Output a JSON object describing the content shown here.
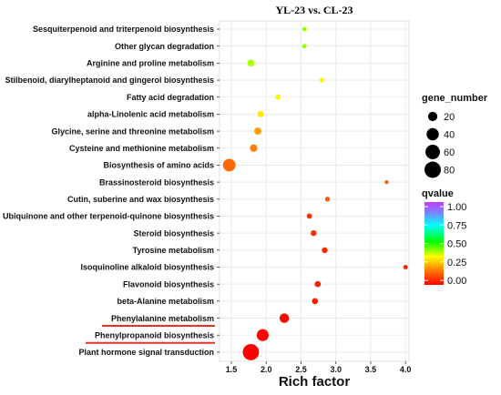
{
  "chart_data": {
    "type": "scatter",
    "title": "YL-23 vs. CL-23",
    "xlabel": "Rich factor",
    "ylabel": "",
    "xlim": [
      1.33,
      4.05
    ],
    "xticks": [
      "1.5",
      "2.0",
      "2.5",
      "3.0",
      "3.5",
      "4.0"
    ],
    "grid": true,
    "pathways": [
      {
        "name": "Sesquiterpenoid and triterpenoid biosynthesis",
        "rich_factor": 2.55,
        "gene_number": 2,
        "qvalue": 0.42,
        "underlined": false
      },
      {
        "name": "Other glycan degradation",
        "rich_factor": 2.55,
        "gene_number": 2,
        "qvalue": 0.42,
        "underlined": false
      },
      {
        "name": "Arginine and proline metabolism",
        "rich_factor": 1.78,
        "gene_number": 9,
        "qvalue": 0.4,
        "underlined": false
      },
      {
        "name": "Stilbenoid, diarylheptanoid and gingerol biosynthesis",
        "rich_factor": 2.8,
        "gene_number": 3,
        "qvalue": 0.35,
        "underlined": false
      },
      {
        "name": "Fatty acid degradation",
        "rich_factor": 2.17,
        "gene_number": 4,
        "qvalue": 0.33,
        "underlined": false
      },
      {
        "name": "alpha-Linolenic acid metabolism",
        "rich_factor": 1.92,
        "gene_number": 7,
        "qvalue": 0.31,
        "underlined": false
      },
      {
        "name": "Glycine, serine and threonine metabolism",
        "rich_factor": 1.88,
        "gene_number": 10,
        "qvalue": 0.22,
        "underlined": false
      },
      {
        "name": "Cysteine and methionine metabolism",
        "rich_factor": 1.82,
        "gene_number": 11,
        "qvalue": 0.18,
        "underlined": false
      },
      {
        "name": "Biosynthesis of amino acids",
        "rich_factor": 1.47,
        "gene_number": 43,
        "qvalue": 0.15,
        "underlined": false
      },
      {
        "name": "Brassinosteroid biosynthesis",
        "rich_factor": 3.73,
        "gene_number": 1,
        "qvalue": 0.12,
        "underlined": false
      },
      {
        "name": "Cutin, suberine and wax biosynthesis",
        "rich_factor": 2.88,
        "gene_number": 3,
        "qvalue": 0.13,
        "underlined": false
      },
      {
        "name": "Ubiquinone and other terpenoid-quinone biosynthesis",
        "rich_factor": 2.62,
        "gene_number": 4,
        "qvalue": 0.07,
        "underlined": false
      },
      {
        "name": "Steroid biosynthesis",
        "rich_factor": 2.68,
        "gene_number": 5,
        "qvalue": 0.06,
        "underlined": false
      },
      {
        "name": "Tyrosine metabolism",
        "rich_factor": 2.84,
        "gene_number": 5,
        "qvalue": 0.05,
        "underlined": false
      },
      {
        "name": "Isoquinoline alkaloid biosynthesis",
        "rich_factor": 4.0,
        "gene_number": 2,
        "qvalue": 0.04,
        "underlined": false
      },
      {
        "name": "Flavonoid biosynthesis",
        "rich_factor": 2.74,
        "gene_number": 6,
        "qvalue": 0.04,
        "underlined": false
      },
      {
        "name": "beta-Alanine metabolism",
        "rich_factor": 2.7,
        "gene_number": 6,
        "qvalue": 0.03,
        "underlined": false
      },
      {
        "name": "Phenylalanine metabolism",
        "rich_factor": 2.26,
        "gene_number": 21,
        "qvalue": 0.01,
        "underlined": true
      },
      {
        "name": "Phenylpropanoid biosynthesis",
        "rich_factor": 1.95,
        "gene_number": 38,
        "qvalue": 0.005,
        "underlined": true
      },
      {
        "name": "Plant hormone signal transduction",
        "rich_factor": 1.78,
        "gene_number": 79,
        "qvalue": 0.0,
        "underlined": false
      }
    ],
    "legend_size": {
      "title": "gene_number",
      "values": [
        20,
        40,
        60,
        80
      ]
    },
    "legend_color": {
      "title": "qvalue",
      "ticks": [
        "1.00",
        "0.75",
        "0.50",
        "0.25",
        "0.00"
      ],
      "colors": [
        "#ff0000",
        "#ff7f00",
        "#ffff00",
        "#00ff00",
        "#00ffff",
        "#7f7fff",
        "#bf40ff"
      ]
    },
    "underline_color": "#e8302a"
  }
}
